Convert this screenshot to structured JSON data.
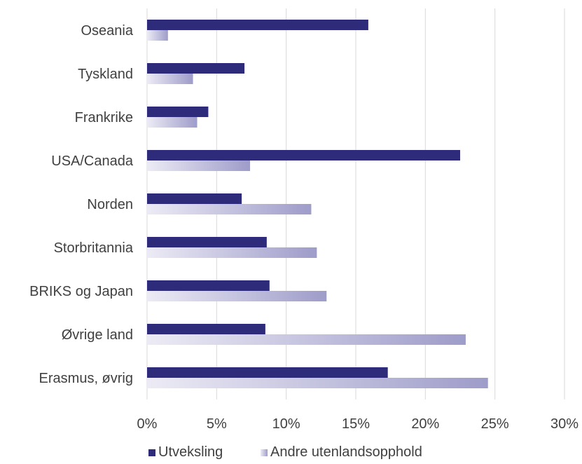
{
  "chart_data": {
    "type": "bar",
    "orientation": "horizontal",
    "categories": [
      "Oseania",
      "Tyskland",
      "Frankrike",
      "USA/Canada",
      "Norden",
      "Storbritannia",
      "BRIKS og Japan",
      "Øvrige land",
      "Erasmus, øvrig"
    ],
    "series": [
      {
        "name": "Utveksling",
        "values": [
          15.9,
          7.0,
          4.4,
          22.5,
          6.8,
          8.6,
          8.8,
          8.5,
          17.3
        ]
      },
      {
        "name": "Andre utenlandsopphold",
        "values": [
          1.5,
          3.3,
          3.6,
          7.4,
          11.8,
          12.2,
          12.9,
          22.9,
          24.5
        ]
      }
    ],
    "xlim": [
      0,
      30
    ],
    "x_ticks": [
      "0%",
      "5%",
      "10%",
      "15%",
      "20%",
      "25%",
      "30%"
    ],
    "grid": "vertical",
    "legend": "bottom",
    "colors": {
      "Utveksling": "#2e2b7a",
      "Andre utenlandsopphold_light": "#ecebf5",
      "Andre utenlandsopphold_dark": "#9e9cc9",
      "grid": "#d9d9d9",
      "text": "#404040"
    }
  }
}
